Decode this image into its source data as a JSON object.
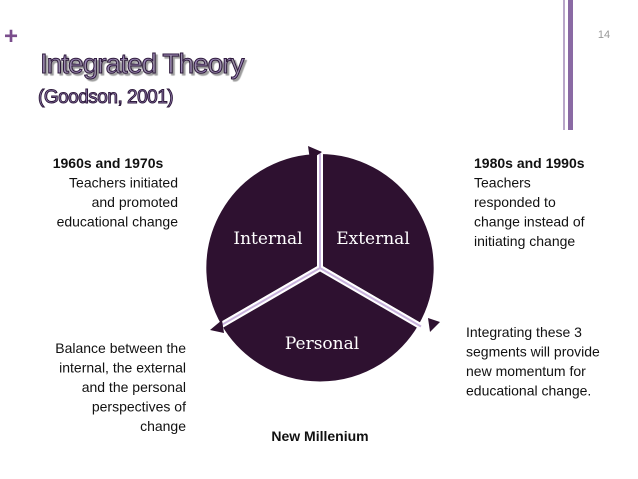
{
  "slide_number": "14",
  "marker": "+",
  "header": {
    "title": "Integrated Theory",
    "subtitle": "(Goodson, 2001)"
  },
  "segments": [
    {
      "label": "Internal"
    },
    {
      "label": "External"
    },
    {
      "label": "Personal"
    }
  ],
  "notes": {
    "top_left": {
      "heading": "1960s and 1970s",
      "lines": [
        "Teachers initiated",
        "and promoted",
        "educational change"
      ]
    },
    "top_right": {
      "heading": "1980s and 1990s",
      "lines": [
        "Teachers",
        "responded to",
        "change instead of",
        "initiating change"
      ]
    },
    "bottom_left": {
      "lines": [
        "Balance between the",
        "internal, the external",
        "and the personal",
        "perspectives of",
        "change"
      ]
    },
    "bottom_right": {
      "lines": [
        "Integrating these 3",
        "segments will provide",
        "new momentum for",
        "educational change."
      ]
    },
    "bottom_center": "New Millenium"
  }
}
